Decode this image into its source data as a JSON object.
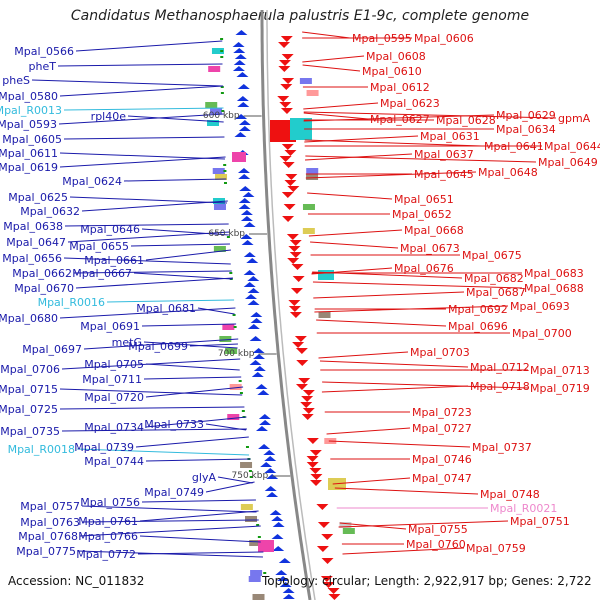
{
  "title": "Candidatus Methanosphaerula palustris E1-9c, complete genome",
  "footer": {
    "accession": "Accession: NC_011832",
    "topology": "Topology: circular; Length: 2,922,917 bp; Genes: 2,722"
  },
  "colors": {
    "left_label": "#1a1aaa",
    "rna_label": "#33bbdd",
    "right_label": "#dd1111",
    "pink_label": "#ee88cc",
    "backbone": "#888888",
    "forward_gene": "#1133dd",
    "reverse_gene": "#ee1111",
    "tick_mark": "#119911"
  },
  "ticks": [
    {
      "label": "600 kbp"
    },
    {
      "label": "650 kbp"
    },
    {
      "label": "700 kbp"
    },
    {
      "label": "750 kbp"
    }
  ],
  "left_labels": [
    {
      "text": "Mpal_0566",
      "kind": "gene"
    },
    {
      "text": "pheT",
      "kind": "gene"
    },
    {
      "text": "pheS",
      "kind": "gene"
    },
    {
      "text": "Mpal_0580",
      "kind": "gene"
    },
    {
      "text": "Mpal_R0013",
      "kind": "rna"
    },
    {
      "text": "rpl40e",
      "kind": "gene"
    },
    {
      "text": "Mpal_0593",
      "kind": "gene"
    },
    {
      "text": "Mpal_0605",
      "kind": "gene"
    },
    {
      "text": "Mpal_0611",
      "kind": "gene"
    },
    {
      "text": "Mpal_0619",
      "kind": "gene"
    },
    {
      "text": "Mpal_0624",
      "kind": "gene"
    },
    {
      "text": "Mpal_0625",
      "kind": "gene"
    },
    {
      "text": "Mpal_0632",
      "kind": "gene"
    },
    {
      "text": "Mpal_0638",
      "kind": "gene"
    },
    {
      "text": "Mpal_0646",
      "kind": "gene"
    },
    {
      "text": "Mpal_0647",
      "kind": "gene"
    },
    {
      "text": "Mpal_0655",
      "kind": "gene"
    },
    {
      "text": "Mpal_0656",
      "kind": "gene"
    },
    {
      "text": "Mpal_0661",
      "kind": "gene"
    },
    {
      "text": "Mpal_0662",
      "kind": "gene"
    },
    {
      "text": "Mpal_0667",
      "kind": "gene"
    },
    {
      "text": "Mpal_0670",
      "kind": "gene"
    },
    {
      "text": "Mpal_R0016",
      "kind": "rna"
    },
    {
      "text": "Mpal_0681",
      "kind": "gene"
    },
    {
      "text": "Mpal_0680",
      "kind": "gene"
    },
    {
      "text": "Mpal_0691",
      "kind": "gene"
    },
    {
      "text": "metG",
      "kind": "gene"
    },
    {
      "text": "Mpal_0697",
      "kind": "gene"
    },
    {
      "text": "Mpal_0699",
      "kind": "gene"
    },
    {
      "text": "Mpal_0705",
      "kind": "gene"
    },
    {
      "text": "Mpal_0706",
      "kind": "gene"
    },
    {
      "text": "Mpal_0711",
      "kind": "gene"
    },
    {
      "text": "Mpal_0715",
      "kind": "gene"
    },
    {
      "text": "Mpal_0720",
      "kind": "gene"
    },
    {
      "text": "Mpal_0725",
      "kind": "gene"
    },
    {
      "text": "Mpal_0733",
      "kind": "gene"
    },
    {
      "text": "Mpal_0734",
      "kind": "gene"
    },
    {
      "text": "Mpal_0735",
      "kind": "gene"
    },
    {
      "text": "Mpal_R0018",
      "kind": "rna"
    },
    {
      "text": "Mpal_0739",
      "kind": "gene"
    },
    {
      "text": "Mpal_0744",
      "kind": "gene"
    },
    {
      "text": "glyA",
      "kind": "gene"
    },
    {
      "text": "Mpal_0749",
      "kind": "gene"
    },
    {
      "text": "Mpal_0756",
      "kind": "gene"
    },
    {
      "text": "Mpal_0757",
      "kind": "gene"
    },
    {
      "text": "Mpal_0761",
      "kind": "gene"
    },
    {
      "text": "Mpal_0763",
      "kind": "gene"
    },
    {
      "text": "Mpal_0766",
      "kind": "gene"
    },
    {
      "text": "Mpal_0768",
      "kind": "gene"
    },
    {
      "text": "Mpal_0772",
      "kind": "gene"
    },
    {
      "text": "Mpal_0775",
      "kind": "gene"
    }
  ],
  "right_labels": [
    {
      "text": "Mpal_0595",
      "kind": "gene"
    },
    {
      "text": "Mpal_0606",
      "kind": "gene"
    },
    {
      "text": "Mpal_0608",
      "kind": "gene"
    },
    {
      "text": "Mpal_0610",
      "kind": "gene"
    },
    {
      "text": "Mpal_0612",
      "kind": "gene"
    },
    {
      "text": "Mpal_0623",
      "kind": "gene"
    },
    {
      "text": "Mpal_0627",
      "kind": "gene"
    },
    {
      "text": "Mpal_0628",
      "kind": "gene"
    },
    {
      "text": "Mpal_0629",
      "kind": "gene"
    },
    {
      "text": "gpmA",
      "kind": "gene"
    },
    {
      "text": "Mpal_0634",
      "kind": "gene"
    },
    {
      "text": "Mpal_0631",
      "kind": "gene"
    },
    {
      "text": "Mpal_0641",
      "kind": "gene"
    },
    {
      "text": "Mpal_0644",
      "kind": "gene"
    },
    {
      "text": "Mpal_0637",
      "kind": "gene"
    },
    {
      "text": "Mpal_0649",
      "kind": "gene"
    },
    {
      "text": "Mpal_0645",
      "kind": "gene"
    },
    {
      "text": "Mpal_0648",
      "kind": "gene"
    },
    {
      "text": "Mpal_0651",
      "kind": "gene"
    },
    {
      "text": "Mpal_0652",
      "kind": "gene"
    },
    {
      "text": "Mpal_0668",
      "kind": "gene"
    },
    {
      "text": "Mpal_0673",
      "kind": "gene"
    },
    {
      "text": "Mpal_0675",
      "kind": "gene"
    },
    {
      "text": "Mpal_0676",
      "kind": "gene"
    },
    {
      "text": "Mpal_0682",
      "kind": "gene"
    },
    {
      "text": "Mpal_0683",
      "kind": "gene"
    },
    {
      "text": "Mpal_0687",
      "kind": "gene"
    },
    {
      "text": "Mpal_0688",
      "kind": "gene"
    },
    {
      "text": "Mpal_0692",
      "kind": "gene"
    },
    {
      "text": "Mpal_0693",
      "kind": "gene"
    },
    {
      "text": "Mpal_0696",
      "kind": "gene"
    },
    {
      "text": "Mpal_0700",
      "kind": "gene"
    },
    {
      "text": "Mpal_0703",
      "kind": "gene"
    },
    {
      "text": "Mpal_0712",
      "kind": "gene"
    },
    {
      "text": "Mpal_0713",
      "kind": "gene"
    },
    {
      "text": "Mpal_0718",
      "kind": "gene"
    },
    {
      "text": "Mpal_0719",
      "kind": "gene"
    },
    {
      "text": "Mpal_0723",
      "kind": "gene"
    },
    {
      "text": "Mpal_0727",
      "kind": "gene"
    },
    {
      "text": "Mpal_0737",
      "kind": "gene"
    },
    {
      "text": "Mpal_0746",
      "kind": "gene"
    },
    {
      "text": "Mpal_0747",
      "kind": "gene"
    },
    {
      "text": "Mpal_0748",
      "kind": "gene"
    },
    {
      "text": "Mpal_R0021",
      "kind": "pink"
    },
    {
      "text": "Mpal_0751",
      "kind": "gene"
    },
    {
      "text": "Mpal_0755",
      "kind": "gene"
    },
    {
      "text": "Mpal_0760",
      "kind": "gene"
    },
    {
      "text": "Mpal_0759",
      "kind": "gene"
    }
  ]
}
